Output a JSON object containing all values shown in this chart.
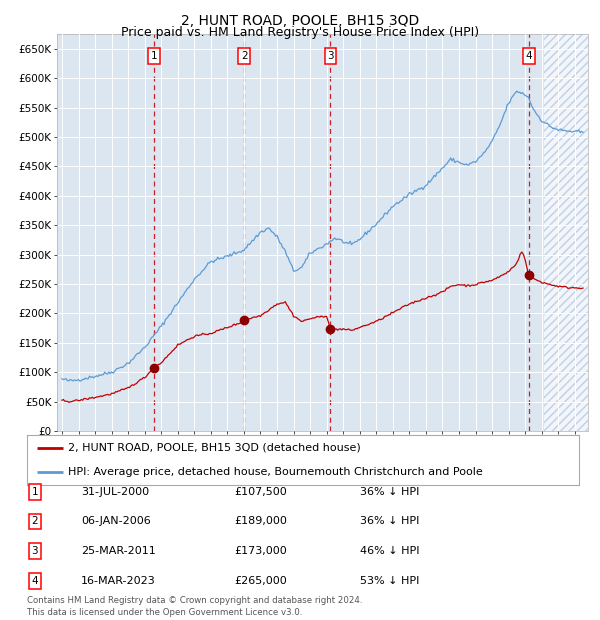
{
  "title": "2, HUNT ROAD, POOLE, BH15 3QD",
  "subtitle": "Price paid vs. HM Land Registry's House Price Index (HPI)",
  "ylim": [
    0,
    675000
  ],
  "yticks": [
    0,
    50000,
    100000,
    150000,
    200000,
    250000,
    300000,
    350000,
    400000,
    450000,
    500000,
    550000,
    600000,
    650000
  ],
  "ytick_labels": [
    "£0",
    "£50K",
    "£100K",
    "£150K",
    "£200K",
    "£250K",
    "£300K",
    "£350K",
    "£400K",
    "£450K",
    "£500K",
    "£550K",
    "£600K",
    "£650K"
  ],
  "xlim_start": 1994.7,
  "xlim_end": 2026.8,
  "plot_bg_color": "#dce6f1",
  "hpi_color": "#5b9bd5",
  "price_color": "#c00000",
  "sale_marker_color": "#8b0000",
  "vline_color": "#c00000",
  "sales": [
    {
      "year": 2000.58,
      "price": 107500,
      "label": "1"
    },
    {
      "year": 2006.02,
      "price": 189000,
      "label": "2"
    },
    {
      "year": 2011.23,
      "price": 173000,
      "label": "3"
    },
    {
      "year": 2023.21,
      "price": 265000,
      "label": "4"
    }
  ],
  "table_rows": [
    {
      "num": "1",
      "date": "31-JUL-2000",
      "price": "£107,500",
      "rel": "36% ↓ HPI"
    },
    {
      "num": "2",
      "date": "06-JAN-2006",
      "price": "£189,000",
      "rel": "36% ↓ HPI"
    },
    {
      "num": "3",
      "date": "25-MAR-2011",
      "price": "£173,000",
      "rel": "46% ↓ HPI"
    },
    {
      "num": "4",
      "date": "16-MAR-2023",
      "price": "£265,000",
      "rel": "53% ↓ HPI"
    }
  ],
  "legend1": "2, HUNT ROAD, POOLE, BH15 3QD (detached house)",
  "legend2": "HPI: Average price, detached house, Bournemouth Christchurch and Poole",
  "footer": "Contains HM Land Registry data © Crown copyright and database right 2024.\nThis data is licensed under the Open Government Licence v3.0.",
  "title_fontsize": 10,
  "subtitle_fontsize": 9,
  "tick_fontsize": 7.5,
  "hatch_start": 2024.17
}
